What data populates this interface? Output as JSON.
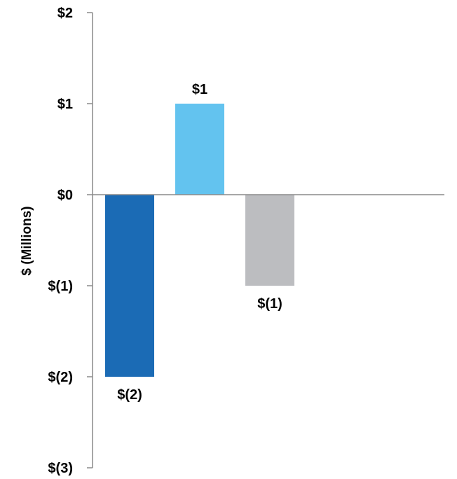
{
  "chart_data": {
    "type": "bar",
    "title": "",
    "xlabel": "",
    "ylabel": "$ (Millions)",
    "ylim": [
      -3,
      2
    ],
    "yticks": [
      2,
      1,
      0,
      -1,
      -2,
      -3
    ],
    "ytick_labels": [
      "$2",
      "$1",
      "$0",
      "$(1)",
      "$(2)",
      "$(3)"
    ],
    "grid": false,
    "categories": [
      "",
      "",
      ""
    ],
    "values": [
      -2,
      1,
      -1
    ],
    "data_labels": [
      "$(2)",
      "$1",
      "$(1)"
    ],
    "colors": [
      "#1b6bb5",
      "#63c3ef",
      "#bcbdc0"
    ]
  }
}
